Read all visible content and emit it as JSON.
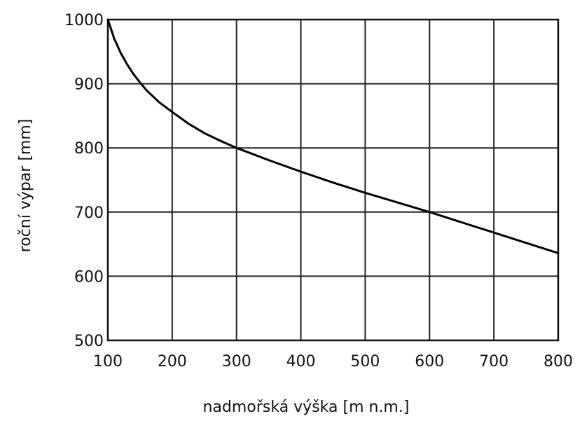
{
  "chart_data": {
    "type": "line",
    "title": "",
    "xlabel": "nadmořská výška [m n.m.]",
    "ylabel": "roční výpar [mm]",
    "xlim": [
      100,
      800
    ],
    "ylim": [
      500,
      1000
    ],
    "x_ticks": [
      100,
      200,
      300,
      400,
      500,
      600,
      700,
      800
    ],
    "y_ticks": [
      500,
      600,
      700,
      800,
      900,
      1000
    ],
    "grid": true,
    "legend": "none",
    "line_color": "#000000",
    "series": [
      {
        "x": [
          100,
          110,
          120,
          130,
          140,
          150,
          160,
          180,
          200,
          225,
          250,
          275,
          300,
          350,
          400,
          450,
          500,
          550,
          600,
          650,
          700,
          750,
          800
        ],
        "y": [
          1000,
          970,
          948,
          930,
          915,
          902,
          890,
          871,
          856,
          838,
          823,
          811,
          800,
          781,
          763,
          746,
          730,
          715,
          700,
          684,
          668,
          652,
          636
        ]
      }
    ]
  }
}
